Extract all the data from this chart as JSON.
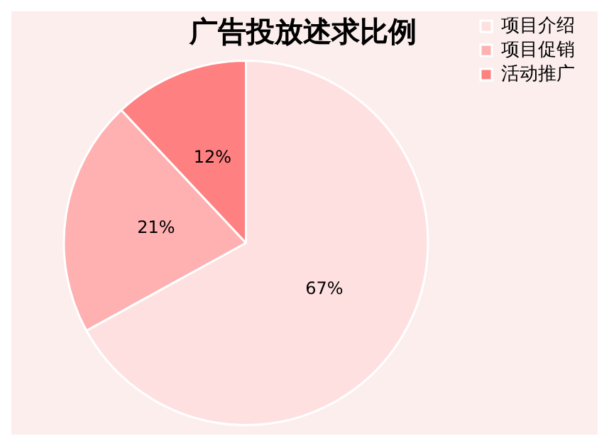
{
  "chart_data": {
    "type": "pie",
    "title": "广告投放述求比例",
    "categories": [
      "项目介绍",
      "项目促销",
      "活动推广"
    ],
    "values": [
      67,
      21,
      12
    ],
    "value_labels": [
      "67%",
      "21%",
      "12%"
    ],
    "colors": [
      "#ffe0e0",
      "#ffb0b0",
      "#ff8080"
    ],
    "legend": "top right"
  }
}
